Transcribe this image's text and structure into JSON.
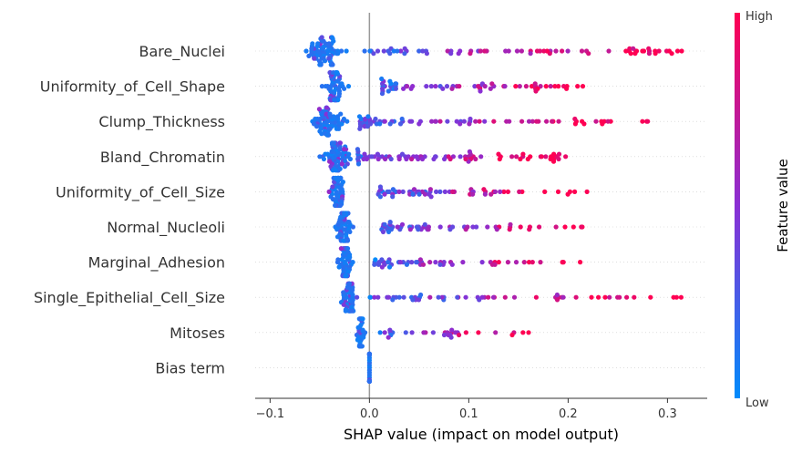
{
  "chart_data": {
    "type": "scatter",
    "subtype": "shap-beeswarm-summary",
    "xlabel": "SHAP value (impact on model output)",
    "xlim": [
      -0.115,
      0.34
    ],
    "x_ticks": [
      -0.1,
      0.0,
      0.1,
      0.2,
      0.3
    ],
    "x_tick_labels": [
      "−0.1",
      "0.0",
      "0.1",
      "0.2",
      "0.3"
    ],
    "zero_line": 0,
    "grid": false,
    "colorbar": {
      "title": "Feature value",
      "high_label": "High",
      "low_label": "Low",
      "high_color": "#ff0052",
      "low_color": "#008bfb"
    },
    "features": [
      {
        "name": "Bare_Nuclei",
        "low": {
          "center": -0.046,
          "spread": 0.014,
          "count": 70,
          "min": -0.078,
          "max": -0.012
        },
        "high_min": -0.005,
        "high_max": 0.32,
        "high_count": 70
      },
      {
        "name": "Uniformity_of_Cell_Shape",
        "low": {
          "center": -0.034,
          "spread": 0.008,
          "count": 60,
          "min": -0.068,
          "max": -0.015
        },
        "high_min": 0.012,
        "high_max": 0.22,
        "high_count": 65
      },
      {
        "name": "Clump_Thickness",
        "low": {
          "center": -0.042,
          "spread": 0.012,
          "count": 70,
          "min": -0.095,
          "max": -0.01
        },
        "high_min": -0.01,
        "high_max": 0.285,
        "high_count": 75
      },
      {
        "name": "Bland_Chromatin",
        "low": {
          "center": -0.034,
          "spread": 0.011,
          "count": 70,
          "min": -0.055,
          "max": -0.015
        },
        "high_min": -0.012,
        "high_max": 0.2,
        "high_count": 80
      },
      {
        "name": "Uniformity_of_Cell_Size",
        "low": {
          "center": -0.032,
          "spread": 0.006,
          "count": 55,
          "min": -0.065,
          "max": -0.015
        },
        "high_min": 0.008,
        "high_max": 0.22,
        "high_count": 60
      },
      {
        "name": "Normal_Nucleoli",
        "low": {
          "center": -0.026,
          "spread": 0.007,
          "count": 55,
          "min": -0.045,
          "max": -0.002
        },
        "high_min": 0.012,
        "high_max": 0.222,
        "high_count": 55
      },
      {
        "name": "Marginal_Adhesion",
        "low": {
          "center": -0.024,
          "spread": 0.006,
          "count": 50,
          "min": -0.04,
          "max": -0.005
        },
        "high_min": 0.005,
        "high_max": 0.213,
        "high_count": 50
      },
      {
        "name": "Single_Epithelial_Cell_Size",
        "low": {
          "center": -0.02,
          "spread": 0.006,
          "count": 50,
          "min": -0.035,
          "max": -0.002
        },
        "high_min": 0.0,
        "high_max": 0.32,
        "high_count": 55
      },
      {
        "name": "Mitoses",
        "low": {
          "center": -0.009,
          "spread": 0.003,
          "count": 40,
          "min": -0.025,
          "max": 0.0
        },
        "high_min": 0.01,
        "high_max": 0.17,
        "high_count": 30
      },
      {
        "name": "Bias term",
        "low": {
          "center": 0.0,
          "spread": 0.0005,
          "count": 30,
          "min": 0.0,
          "max": 0.0
        },
        "high_min": 0.0,
        "high_max": 0.0,
        "high_count": 0
      }
    ]
  }
}
